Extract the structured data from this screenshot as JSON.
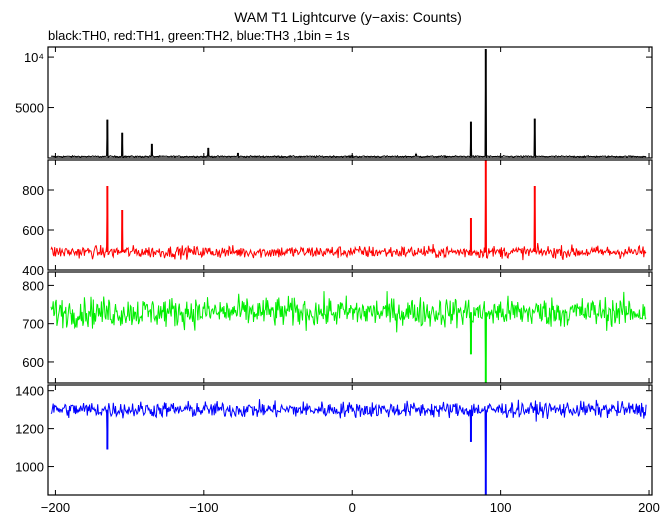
{
  "chart_data": {
    "type": "line",
    "title": "WAM T1 Lightcurve (y−axis: Counts)",
    "subtitle": "black:TH0, red:TH1, green:TH2, blue:TH3 ,1bin = 1s",
    "xlim": [
      -205,
      202
    ],
    "x_ticks": [
      -200,
      -100,
      0,
      100,
      200
    ],
    "x_tick_labels": [
      "−200",
      "−100",
      "0",
      "100",
      "200"
    ],
    "panels": [
      {
        "name": "TH0",
        "color": "#000000",
        "ylim": [
          0,
          11000
        ],
        "y_ticks": [
          5000,
          10000
        ],
        "y_tick_labels": [
          "5000",
          "10⁴"
        ],
        "baseline": 150,
        "noise": 50,
        "events": [
          {
            "x": -165,
            "y": 3800
          },
          {
            "x": -155,
            "y": 2500
          },
          {
            "x": -135,
            "y": 1400
          },
          {
            "x": -97,
            "y": 1000
          },
          {
            "x": -77,
            "y": 500
          },
          {
            "x": 0,
            "y": 300
          },
          {
            "x": 43,
            "y": 400
          },
          {
            "x": 80,
            "y": 3600
          },
          {
            "x": 90,
            "y": 10800
          },
          {
            "x": 123,
            "y": 3900
          }
        ]
      },
      {
        "name": "TH1",
        "color": "#ff0000",
        "ylim": [
          400,
          950
        ],
        "y_ticks": [
          400,
          600,
          800
        ],
        "y_tick_labels": [
          "400",
          "600",
          "800"
        ],
        "baseline": 490,
        "noise": 22,
        "events": [
          {
            "x": -165,
            "y": 820
          },
          {
            "x": -155,
            "y": 700
          },
          {
            "x": 80,
            "y": 660
          },
          {
            "x": 90,
            "y": 950
          },
          {
            "x": 123,
            "y": 820
          }
        ]
      },
      {
        "name": "TH2",
        "color": "#00ee00",
        "ylim": [
          545,
          835
        ],
        "y_ticks": [
          600,
          700,
          800
        ],
        "y_tick_labels": [
          "600",
          "700",
          "800"
        ],
        "baseline": 730,
        "noise": 28,
        "events": [
          {
            "x": 80,
            "y": 620
          },
          {
            "x": 90,
            "y": 545
          }
        ]
      },
      {
        "name": "TH3",
        "color": "#0000ff",
        "ylim": [
          850,
          1430
        ],
        "y_ticks": [
          1000,
          1200,
          1400
        ],
        "y_tick_labels": [
          "1000",
          "1200",
          "1400"
        ],
        "baseline": 1300,
        "noise": 30,
        "events": [
          {
            "x": -165,
            "y": 1090
          },
          {
            "x": 80,
            "y": 1130
          },
          {
            "x": 90,
            "y": 850
          }
        ]
      }
    ]
  }
}
